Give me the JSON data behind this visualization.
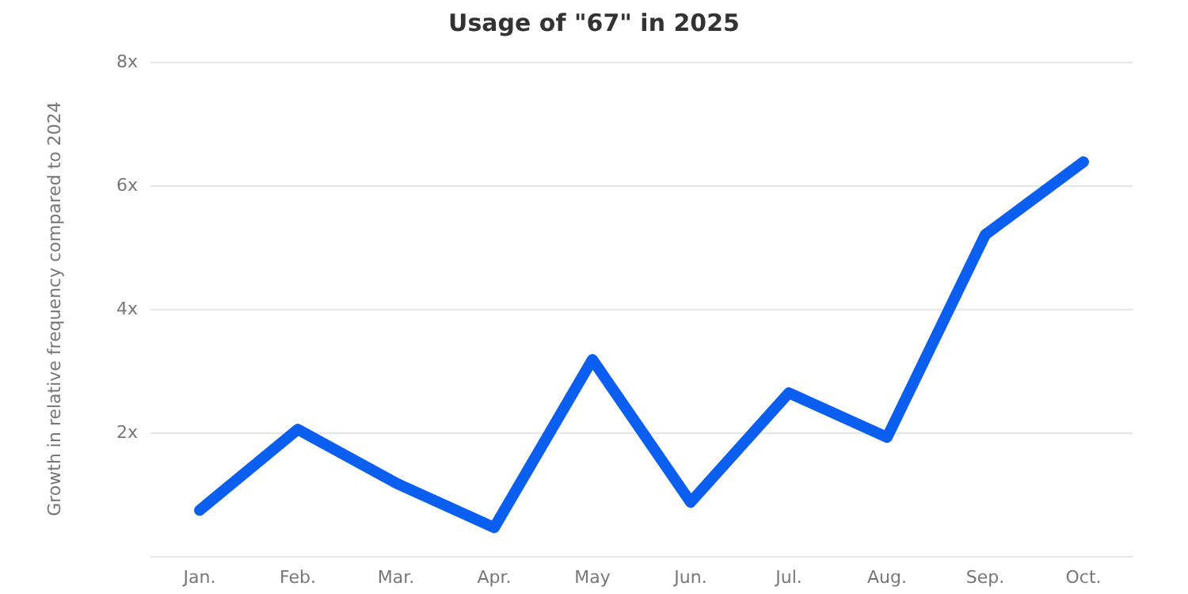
{
  "chart_data": {
    "type": "line",
    "title": "Usage of \"67\" in 2025",
    "ylabel": "Growth in relative frequency compared to 2024",
    "categories": [
      "Jan.",
      "Feb.",
      "Mar.",
      "Apr.",
      "May",
      "Jun.",
      "Jul.",
      "Aug.",
      "Sep.",
      "Oct."
    ],
    "series": [
      {
        "color": "#0a5ef0",
        "values": [
          0.74,
          2.05,
          1.18,
          0.46,
          3.18,
          0.87,
          2.64,
          1.92,
          5.2,
          6.38
        ]
      }
    ],
    "ylim": [
      0,
      8
    ],
    "yticks": [
      {
        "value": 0,
        "label": null
      },
      {
        "value": 2,
        "label": "2x"
      },
      {
        "value": 4,
        "label": "4x"
      },
      {
        "value": 6,
        "label": "6x"
      },
      {
        "value": 8,
        "label": "8x"
      }
    ],
    "grid": "y",
    "marker": "none",
    "line_style": "solid"
  }
}
